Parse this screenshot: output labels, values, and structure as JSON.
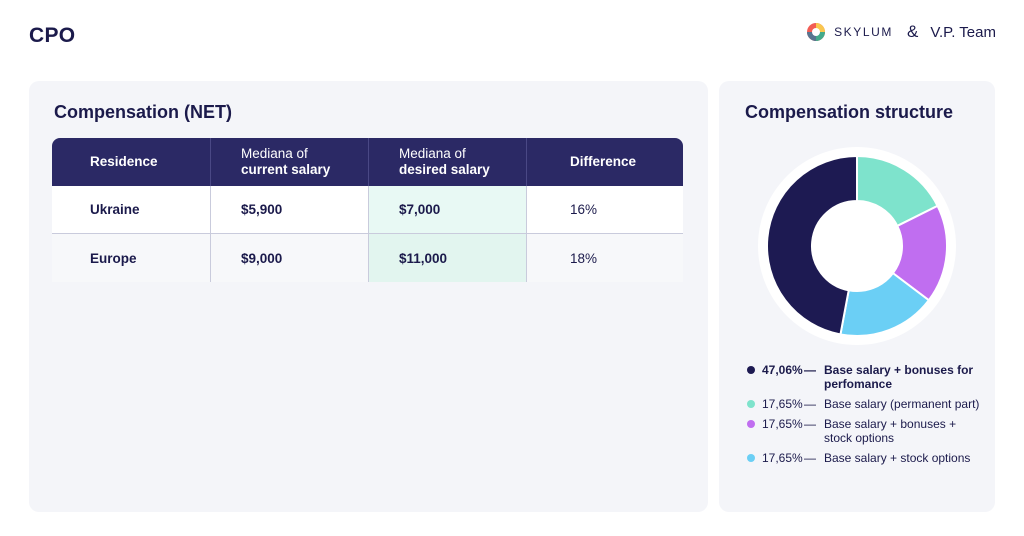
{
  "header": {
    "title": "CPO",
    "brand_skylum": "SKYLUM",
    "brand_amp": "&",
    "brand_vp": "V.P. Team"
  },
  "left_panel": {
    "title": "Compensation (NET)",
    "columns": [
      {
        "line1": "Residence",
        "line2": ""
      },
      {
        "line1": "Mediana of",
        "line2": "current salary"
      },
      {
        "line1": "Mediana of",
        "line2": "desired salary"
      },
      {
        "line1": "Difference",
        "line2": ""
      }
    ],
    "rows": [
      {
        "residence": "Ukraine",
        "current": "$5,900",
        "desired": "$7,000",
        "difference": "16%"
      },
      {
        "residence": "Europe",
        "current": "$9,000",
        "desired": "$11,000",
        "difference": "18%"
      }
    ]
  },
  "right_panel": {
    "title": "Compensation structure",
    "dash": "—"
  },
  "chart_data": {
    "type": "pie",
    "title": "Compensation structure",
    "slices": [
      {
        "label": "Base salary (permanent part)",
        "value": 17.65,
        "display": "17,65%",
        "color": "#7ee3cc"
      },
      {
        "label": "Base salary + bonuses + stock options",
        "value": 17.65,
        "display": "17,65%",
        "color": "#c06ef0"
      },
      {
        "label": "Base salary + stock options",
        "value": 17.65,
        "display": "17,65%",
        "color": "#6bcff5"
      },
      {
        "label": "Base salary + bonuses for perfomance",
        "value": 47.06,
        "display": "47,06%",
        "color": "#1d1a52"
      }
    ],
    "legend": [
      {
        "pct": "47,06%",
        "text": "Base salary + bonuses for perfomance",
        "color": "#1d1a52",
        "bold": true
      },
      {
        "pct": "17,65%",
        "text": "Base salary (permanent part)",
        "color": "#7ee3cc",
        "bold": false
      },
      {
        "pct": "17,65%",
        "text": "Base salary + bonuses + stock options",
        "color": "#c06ef0",
        "bold": false
      },
      {
        "pct": "17,65%",
        "text": "Base salary + stock options",
        "color": "#6bcff5",
        "bold": false
      }
    ]
  }
}
